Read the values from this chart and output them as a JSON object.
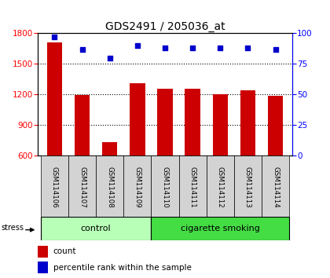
{
  "title": "GDS2491 / 205036_at",
  "samples": [
    "GSM114106",
    "GSM114107",
    "GSM114108",
    "GSM114109",
    "GSM114110",
    "GSM114111",
    "GSM114112",
    "GSM114113",
    "GSM114114"
  ],
  "counts": [
    1710,
    1195,
    730,
    1310,
    1255,
    1255,
    1200,
    1240,
    1185
  ],
  "percentiles": [
    97,
    87,
    80,
    90,
    88,
    88,
    88,
    88,
    87
  ],
  "ylim_left": [
    600,
    1800
  ],
  "ylim_right": [
    0,
    100
  ],
  "yticks_left": [
    600,
    900,
    1200,
    1500,
    1800
  ],
  "yticks_right": [
    0,
    25,
    50,
    75,
    100
  ],
  "bar_color": "#cc0000",
  "dot_color": "#0000cc",
  "n_control": 4,
  "n_smoking": 5,
  "control_label": "control",
  "smoking_label": "cigarette smoking",
  "stress_label": "stress",
  "legend_count": "count",
  "legend_percentile": "percentile rank within the sample",
  "label_area_color": "#d3d3d3",
  "control_band_color": "#b8ffb8",
  "smoking_band_color": "#44dd44"
}
